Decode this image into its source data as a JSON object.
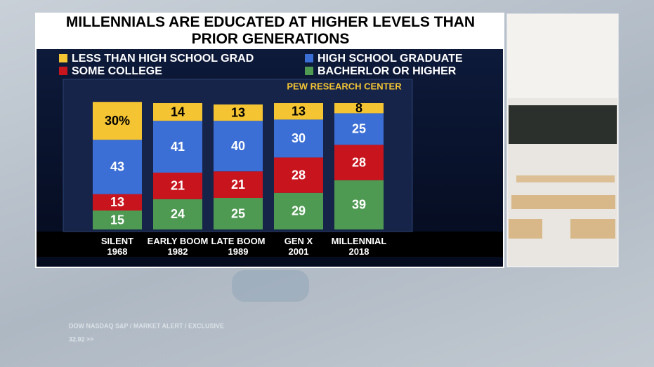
{
  "chart_data": {
    "type": "stacked_bar",
    "title": "MILLENNIALS ARE EDUCATED AT HIGHER LEVELS THAN PRIOR GENERATIONS",
    "source": "PEW RESEARCH CENTER",
    "categories": [
      "SILENT\n1968",
      "EARLY BOOM\n1982",
      "LATE BOOM\n1989",
      "GEN X\n2001",
      "MILLENNIAL\n2018"
    ],
    "series": [
      {
        "name": "BACHERLOR OR HIGHER",
        "color": "#4f9a53",
        "values": [
          15,
          24,
          25,
          29,
          39
        ]
      },
      {
        "name": "SOME COLLEGE",
        "color": "#c8151d",
        "values": [
          13,
          21,
          21,
          28,
          28
        ]
      },
      {
        "name": "HIGH SCHOOL GRADUATE",
        "color": "#3b6fd6",
        "values": [
          43,
          41,
          40,
          30,
          25
        ]
      },
      {
        "name": "LESS THAN HIGH SCHOOL GRAD",
        "color": "#f4c433",
        "values": [
          30,
          14,
          13,
          13,
          8
        ],
        "value_labels": [
          "30%",
          "14",
          "13",
          "13",
          "8"
        ]
      }
    ]
  },
  "ticker": {
    "line1": "DOW NASDAQ S&P  /  MARKET ALERT  /  EXCLUSIVE",
    "line2": "32.92 >>"
  }
}
